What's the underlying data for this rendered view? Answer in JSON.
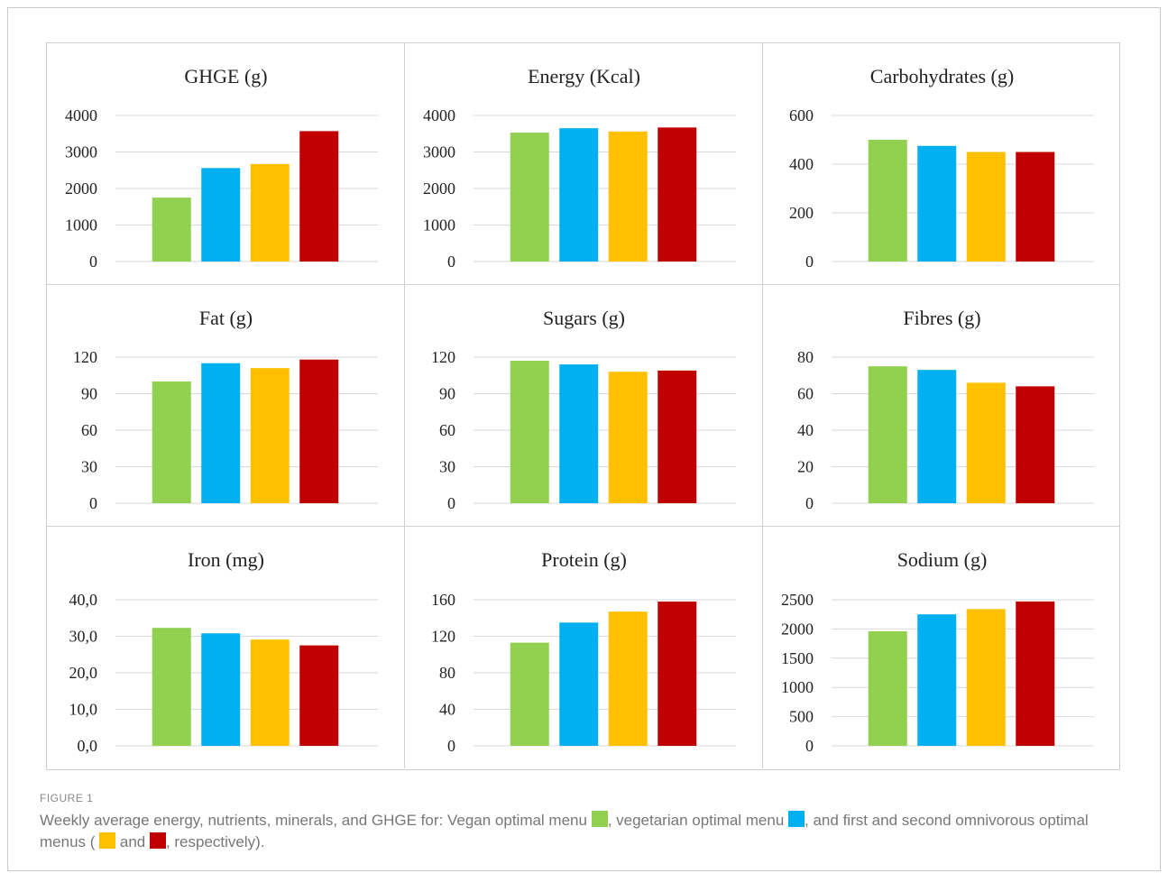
{
  "figure": {
    "label": "FIGURE 1",
    "caption_parts": [
      {
        "text": "Weekly average energy, nutrients, minerals, and GHGE for: Vegan optimal menu "
      },
      {
        "swatch": 0
      },
      {
        "text": ", vegetarian optimal menu "
      },
      {
        "swatch": 1
      },
      {
        "text": ", and first and second omnivorous optimal menus ( "
      },
      {
        "swatch": 2
      },
      {
        "text": " and "
      },
      {
        "swatch": 3
      },
      {
        "text": ", respectively)."
      }
    ]
  },
  "colors": [
    "#92d050",
    "#00b0f0",
    "#ffc000",
    "#c00000"
  ],
  "chart_data": [
    {
      "type": "bar",
      "title": "GHGE (g)",
      "ylim": [
        0,
        4000
      ],
      "ticks": [
        "0",
        "1000",
        "2000",
        "3000",
        "4000"
      ],
      "values": [
        1750,
        2560,
        2670,
        3570
      ],
      "grid": true
    },
    {
      "type": "bar",
      "title": "Energy (Kcal)",
      "ylim": [
        0,
        4000
      ],
      "ticks": [
        "0",
        "1000",
        "2000",
        "3000",
        "4000"
      ],
      "values": [
        3530,
        3650,
        3560,
        3670
      ],
      "grid": true
    },
    {
      "type": "bar",
      "title": "Carbohydrates (g)",
      "ylim": [
        0,
        600
      ],
      "ticks": [
        "0",
        "200",
        "400",
        "600"
      ],
      "values": [
        500,
        475,
        450,
        450
      ],
      "grid": true
    },
    {
      "type": "bar",
      "title": "Fat (g)",
      "ylim": [
        0,
        120
      ],
      "ticks": [
        "0",
        "30",
        "60",
        "90",
        "120"
      ],
      "values": [
        100,
        115,
        111,
        118
      ],
      "grid": true
    },
    {
      "type": "bar",
      "title": "Sugars (g)",
      "ylim": [
        0,
        120
      ],
      "ticks": [
        "0",
        "30",
        "60",
        "90",
        "120"
      ],
      "values": [
        117,
        114,
        108,
        109
      ],
      "grid": true
    },
    {
      "type": "bar",
      "title": "Fibres (g)",
      "ylim": [
        0,
        80
      ],
      "ticks": [
        "0",
        "20",
        "40",
        "60",
        "80"
      ],
      "values": [
        75,
        73,
        66,
        64
      ],
      "grid": true
    },
    {
      "type": "bar",
      "title": "Iron (mg)",
      "ylim": [
        0,
        40
      ],
      "ticks": [
        "0,0",
        "10,0",
        "20,0",
        "30,0",
        "40,0"
      ],
      "values": [
        32.3,
        30.8,
        29.1,
        27.5
      ],
      "grid": true
    },
    {
      "type": "bar",
      "title": "Protein (g)",
      "ylim": [
        0,
        160
      ],
      "ticks": [
        "0",
        "40",
        "80",
        "120",
        "160"
      ],
      "values": [
        113,
        135,
        147,
        158
      ],
      "grid": true
    },
    {
      "type": "bar",
      "title": "Sodium (g)",
      "ylim": [
        0,
        2500
      ],
      "ticks": [
        "0",
        "500",
        "1000",
        "1500",
        "2000",
        "2500"
      ],
      "values": [
        1960,
        2250,
        2340,
        2470
      ],
      "grid": true
    }
  ]
}
